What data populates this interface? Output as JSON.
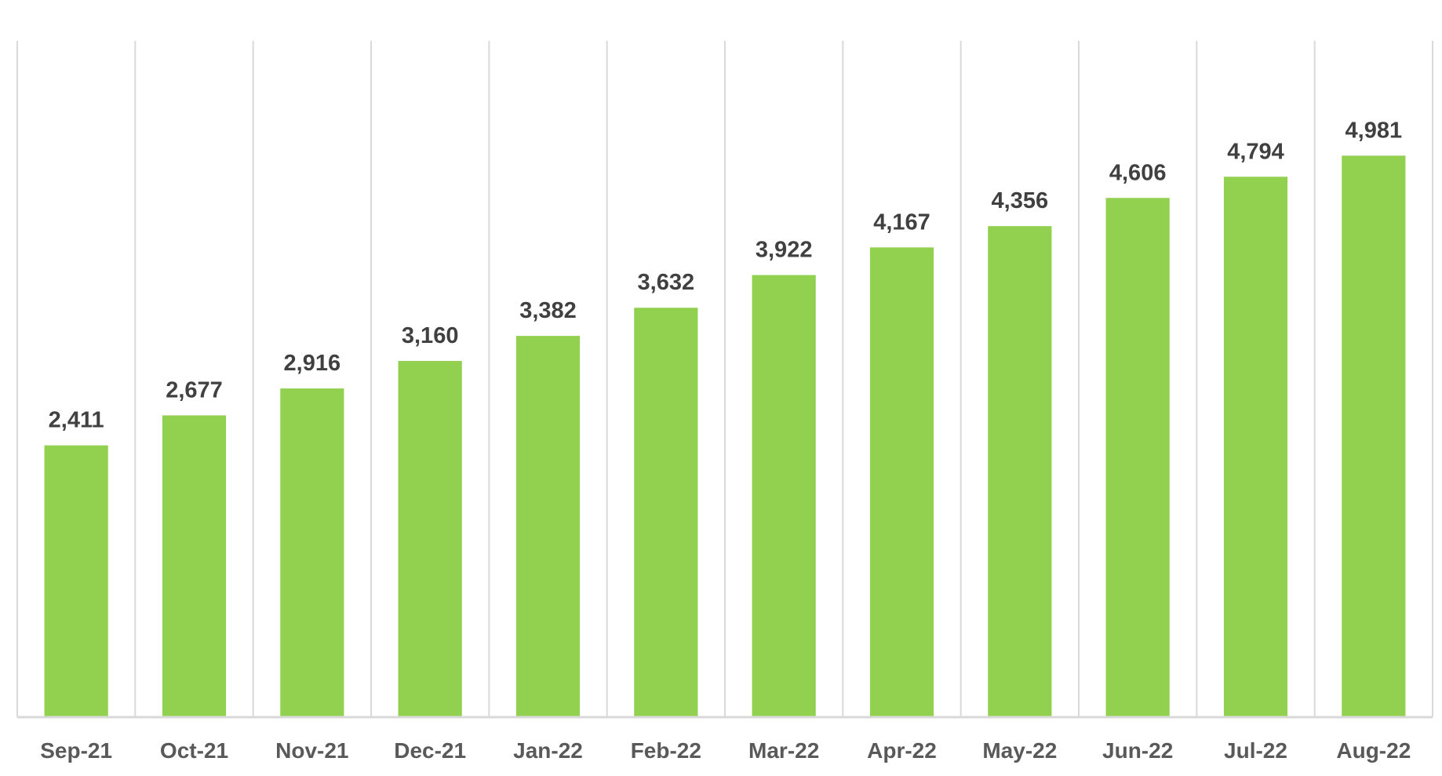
{
  "chart_data": {
    "type": "bar",
    "categories": [
      "Sep-21",
      "Oct-21",
      "Nov-21",
      "Dec-21",
      "Jan-22",
      "Feb-22",
      "Mar-22",
      "Apr-22",
      "May-22",
      "Jun-22",
      "Jul-22",
      "Aug-22"
    ],
    "values": [
      2411,
      2677,
      2916,
      3160,
      3382,
      3632,
      3922,
      4167,
      4356,
      4606,
      4794,
      4981
    ],
    "data_labels": [
      "2,411",
      "2,677",
      "2,916",
      "3,160",
      "3,382",
      "3,632",
      "3,922",
      "4,167",
      "4,356",
      "4,606",
      "4,794",
      "4,981"
    ],
    "title": "",
    "xlabel": "",
    "ylabel": "",
    "ylim": [
      0,
      6000
    ],
    "grid": "vertical category separators",
    "legend": "none",
    "colors": {
      "bar": "#92D050",
      "gridline": "#D9D9D9",
      "axis": "#D9D9D9",
      "data_label": "#404040",
      "tick_label": "#595959"
    }
  }
}
